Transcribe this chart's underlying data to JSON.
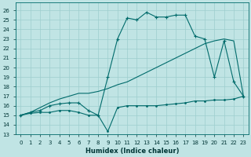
{
  "xlabel": "Humidex (Indice chaleur)",
  "bg_color": "#c0e4e4",
  "grid_color": "#9dcece",
  "line_color": "#006b6b",
  "xlim": [
    -0.5,
    23.5
  ],
  "ylim": [
    13,
    26.8
  ],
  "xticks": [
    0,
    1,
    2,
    3,
    4,
    5,
    6,
    7,
    8,
    9,
    10,
    11,
    12,
    13,
    14,
    15,
    16,
    17,
    18,
    19,
    20,
    21,
    22,
    23
  ],
  "yticks": [
    13,
    14,
    15,
    16,
    17,
    18,
    19,
    20,
    21,
    22,
    23,
    24,
    25,
    26
  ],
  "curve1_x": [
    0,
    1,
    2,
    3,
    4,
    5,
    6,
    7,
    8,
    9,
    10,
    11,
    12,
    13,
    14,
    15,
    16,
    17,
    18,
    19,
    20,
    21,
    22,
    23
  ],
  "curve1_y": [
    15,
    15.2,
    15.3,
    15.3,
    15.5,
    15.5,
    15.3,
    15.0,
    15.0,
    13.3,
    15.8,
    16.0,
    16.0,
    16.0,
    16.0,
    16.1,
    16.2,
    16.3,
    16.5,
    16.5,
    16.6,
    16.6,
    16.7,
    17.0
  ],
  "curve2_x": [
    0,
    1,
    2,
    3,
    4,
    5,
    6,
    7,
    8,
    9,
    10,
    11,
    12,
    13,
    14,
    15,
    16,
    17,
    18,
    19,
    20,
    21,
    22,
    23
  ],
  "curve2_y": [
    15,
    15.3,
    15.5,
    16.0,
    16.2,
    16.3,
    16.3,
    15.5,
    15.0,
    19.0,
    23.0,
    25.2,
    25.0,
    25.8,
    25.3,
    25.3,
    25.5,
    25.5,
    23.3,
    23.0,
    19.0,
    22.8,
    18.5,
    17.0
  ],
  "curve3_x": [
    0,
    1,
    2,
    3,
    4,
    5,
    6,
    7,
    8,
    9,
    10,
    11,
    12,
    13,
    14,
    15,
    16,
    17,
    18,
    19,
    20,
    21,
    22,
    23
  ],
  "curve3_y": [
    15,
    15.3,
    15.8,
    16.3,
    16.7,
    17.0,
    17.3,
    17.3,
    17.5,
    17.8,
    18.2,
    18.5,
    19.0,
    19.5,
    20.0,
    20.5,
    21.0,
    21.5,
    22.0,
    22.5,
    22.8,
    23.0,
    22.8,
    17.0
  ]
}
